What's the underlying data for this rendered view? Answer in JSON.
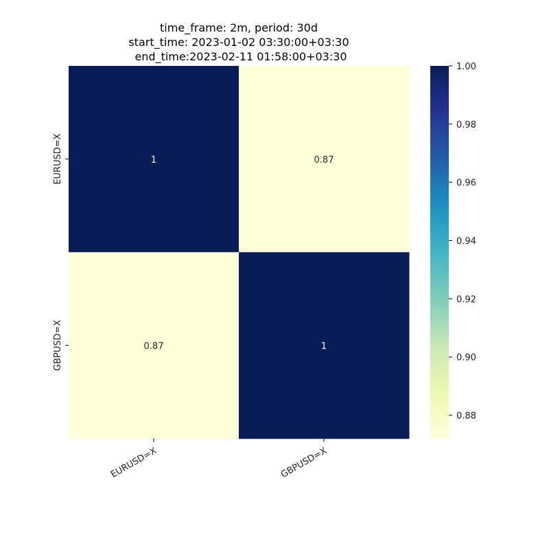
{
  "chart_data": {
    "type": "heatmap",
    "title_lines": [
      "time_frame: 2m, period: 30d",
      "start_time: 2023-01-02 03:30:00+03:30",
      "end_time:2023-02-11 01:58:00+03:30"
    ],
    "x_categories": [
      "EURUSD=X",
      "GBPUSD=X"
    ],
    "y_categories": [
      "EURUSD=X",
      "GBPUSD=X"
    ],
    "values": [
      [
        1.0,
        0.87
      ],
      [
        0.87,
        1.0
      ]
    ],
    "annotations": [
      [
        "1",
        "0.87"
      ],
      [
        "0.87",
        "1"
      ]
    ],
    "colormap": "YlGnBu",
    "colorbar": {
      "vmin": 0.872,
      "vmax": 1.0,
      "ticks": [
        0.88,
        0.9,
        0.92,
        0.94,
        0.96,
        0.98,
        1.0
      ],
      "tick_labels": [
        "0.88",
        "0.90",
        "0.92",
        "0.94",
        "0.96",
        "0.98",
        "1.00"
      ]
    },
    "xlabel": "",
    "ylabel": ""
  }
}
